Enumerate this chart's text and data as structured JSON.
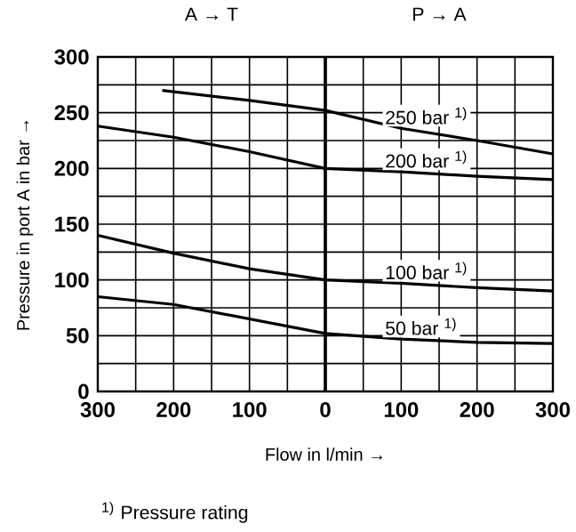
{
  "chart_data": {
    "type": "line",
    "xlabel": "Flow in l/min →",
    "ylabel": "Pressure in port A in bar →",
    "annotations": [
      "A → T",
      "P → A",
      "$^{1)}$ Pressure rating"
    ],
    "x": [
      -300,
      -200,
      -100,
      0,
      100,
      200,
      300
    ],
    "series": [
      {
        "name": "250 bar $^{1)}$",
        "color": "#000000",
        "x": [
          -215,
          -100,
          0,
          100,
          200,
          300
        ],
        "values": [
          270,
          261,
          252,
          236,
          225,
          213
        ]
      },
      {
        "name": "200 bar $^{1)}$",
        "color": "#000000",
        "values": [
          238,
          228,
          215,
          200,
          197,
          193,
          190
        ]
      },
      {
        "name": "100 bar $^{1)}$",
        "color": "#000000",
        "values": [
          140,
          124,
          110,
          100,
          97,
          93,
          90
        ]
      },
      {
        "name": "50 bar $^{1)}$",
        "color": "#000000",
        "values": [
          85,
          78,
          65,
          52,
          47,
          44,
          43
        ]
      }
    ],
    "xlim": [
      -300,
      300
    ],
    "ylim": [
      0,
      300
    ],
    "xticks": [
      {
        "value": -300,
        "label": "300"
      },
      {
        "value": -200,
        "label": "200"
      },
      {
        "value": -100,
        "label": "100"
      },
      0,
      100,
      200,
      300
    ],
    "yticks": [
      0,
      50,
      100,
      150,
      200,
      250,
      300
    ],
    "ref_lines": [
      {
        "axis": "x",
        "value": 0
      }
    ],
    "grid": true,
    "legend": false,
    "marker": "none",
    "line_style": "solid"
  }
}
